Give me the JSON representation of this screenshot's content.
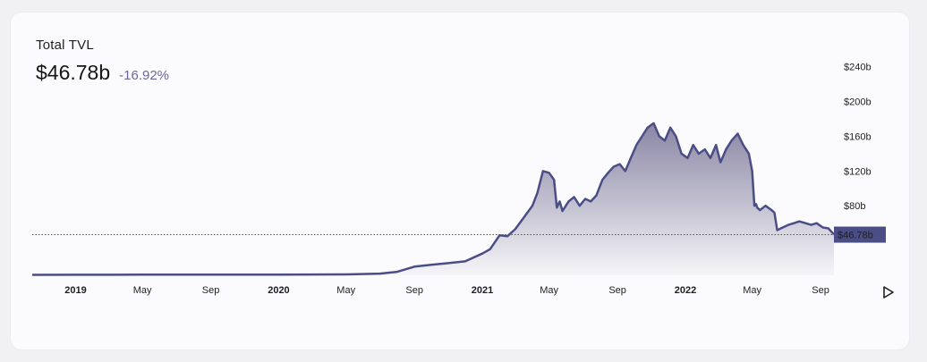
{
  "header": {
    "label": "Total TVL",
    "value": "$46.78b",
    "change": "-16.92%"
  },
  "colors": {
    "line": "#4a4e85",
    "area_top": "#8a86a4",
    "area_bottom": "#f5f5f8",
    "badge": "#4a4e85",
    "badge_text": "#ffffff"
  },
  "controls": {
    "play_icon": "play-icon"
  },
  "chart_data": {
    "type": "area",
    "y_ticks": [
      "$240b",
      "$200b",
      "$160b",
      "$120b",
      "$80b"
    ],
    "y_tick_values": [
      240,
      200,
      160,
      120,
      80
    ],
    "ylim": [
      0,
      250
    ],
    "x_ticks": [
      {
        "label": "2019",
        "date": "2019-01-01",
        "year": true
      },
      {
        "label": "May",
        "date": "2019-05-01",
        "year": false
      },
      {
        "label": "Sep",
        "date": "2019-09-01",
        "year": false
      },
      {
        "label": "2020",
        "date": "2020-01-01",
        "year": true
      },
      {
        "label": "May",
        "date": "2020-05-01",
        "year": false
      },
      {
        "label": "Sep",
        "date": "2020-09-01",
        "year": false
      },
      {
        "label": "2021",
        "date": "2021-01-01",
        "year": true
      },
      {
        "label": "May",
        "date": "2021-05-01",
        "year": false
      },
      {
        "label": "Sep",
        "date": "2021-09-01",
        "year": false
      },
      {
        "label": "2022",
        "date": "2022-01-01",
        "year": true
      },
      {
        "label": "May",
        "date": "2022-05-01",
        "year": false
      },
      {
        "label": "Sep",
        "date": "2022-09-01",
        "year": false
      }
    ],
    "xlim": [
      "2018-10-15",
      "2022-09-25"
    ],
    "current_value": 46.78,
    "current_label": "$46.78b",
    "series": [
      {
        "x": [
          "2018-10-15",
          "2019-01-01",
          "2019-05-01",
          "2019-09-01",
          "2020-01-01",
          "2020-05-01",
          "2020-07-01",
          "2020-08-01",
          "2020-09-01",
          "2020-10-01",
          "2020-11-01",
          "2020-12-01",
          "2021-01-01",
          "2021-01-15",
          "2021-02-01",
          "2021-02-15",
          "2021-03-01",
          "2021-03-15",
          "2021-04-01",
          "2021-04-10",
          "2021-04-20",
          "2021-05-01",
          "2021-05-10",
          "2021-05-15",
          "2021-05-20",
          "2021-05-25",
          "2021-06-05",
          "2021-06-15",
          "2021-06-25",
          "2021-07-05",
          "2021-07-15",
          "2021-07-25",
          "2021-08-05",
          "2021-08-15",
          "2021-08-25",
          "2021-09-05",
          "2021-09-15",
          "2021-09-25",
          "2021-10-05",
          "2021-10-15",
          "2021-10-25",
          "2021-11-05",
          "2021-11-15",
          "2021-11-25",
          "2021-12-05",
          "2021-12-15",
          "2021-12-25",
          "2022-01-05",
          "2022-01-15",
          "2022-01-25",
          "2022-02-05",
          "2022-02-15",
          "2022-02-25",
          "2022-03-05",
          "2022-03-15",
          "2022-03-25",
          "2022-04-05",
          "2022-04-15",
          "2022-04-25",
          "2022-05-01",
          "2022-05-05",
          "2022-05-08",
          "2022-05-10",
          "2022-05-15",
          "2022-05-25",
          "2022-06-05",
          "2022-06-10",
          "2022-06-15",
          "2022-06-25",
          "2022-07-05",
          "2022-07-15",
          "2022-07-25",
          "2022-08-05",
          "2022-08-15",
          "2022-08-25",
          "2022-09-05",
          "2022-09-15",
          "2022-09-25"
        ],
        "values": [
          0.5,
          0.6,
          0.7,
          0.7,
          0.8,
          1,
          2,
          4,
          10,
          12,
          14,
          16,
          25,
          30,
          46,
          45,
          53,
          65,
          80,
          95,
          120,
          118,
          110,
          78,
          85,
          74,
          85,
          90,
          80,
          88,
          85,
          92,
          110,
          118,
          125,
          128,
          120,
          135,
          150,
          160,
          170,
          175,
          160,
          155,
          170,
          160,
          140,
          135,
          150,
          140,
          145,
          135,
          150,
          130,
          145,
          155,
          163,
          150,
          140,
          120,
          80,
          82,
          78,
          75,
          80,
          75,
          72,
          52,
          55,
          58,
          60,
          62,
          60,
          58,
          60,
          55,
          54,
          47
        ]
      }
    ]
  }
}
